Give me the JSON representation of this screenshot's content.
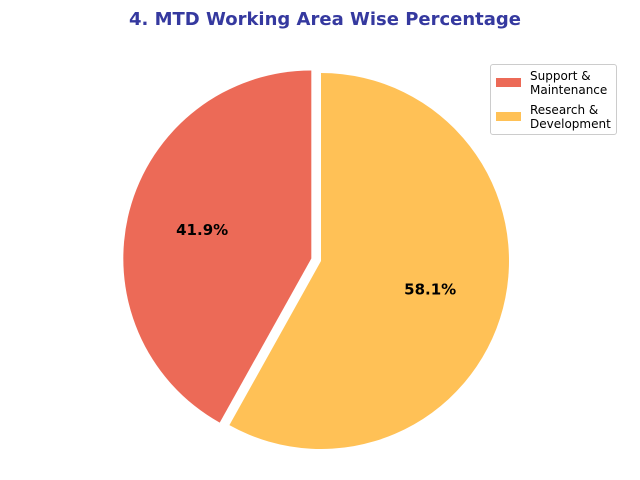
{
  "chart_data": {
    "type": "pie",
    "title": "4. MTD Working Area Wise Percentage",
    "slices": [
      {
        "label": "Support & Maintenance",
        "legend_label": "Support &\nMaintenance",
        "value": 41.9,
        "value_label": "41.9%",
        "color": "#ec6a57",
        "exploded": true
      },
      {
        "label": "Research & Development",
        "legend_label": "Research &\nDevelopment",
        "value": 58.1,
        "value_label": "58.1%",
        "color": "#ffc156",
        "exploded": false
      }
    ],
    "start_angle_deg": 90,
    "direction": "counterclockwise",
    "legend_position": "upper-right"
  }
}
